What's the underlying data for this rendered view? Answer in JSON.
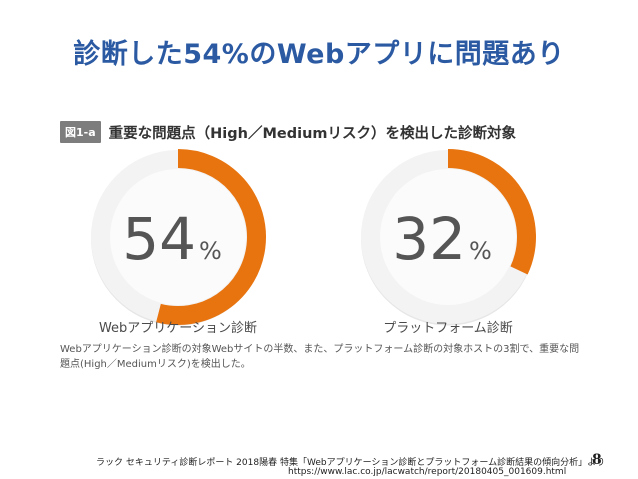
{
  "slide": {
    "title": "診断した54%のWebアプリに問題あり",
    "page_number": "8"
  },
  "figure": {
    "badge": "図1-a",
    "title": "重要な問題点（High／Mediumリスク）を検出した診断対象",
    "note": "Webアプリケーション診断の対象Webサイトの半数、また、プラットフォーム診断の対象ホストの3割で、重要な問題点(High／Mediumリスク)を検出した。"
  },
  "footer": {
    "source": "ラック セキュリティ診断レポート 2018陽春 特集「Webアプリケーション診断とプラットフォーム診断結果の傾向分析」より",
    "url": "https://www.lac.co.jp/lacwatch/report/20180405_001609.html"
  },
  "colors": {
    "accent": "#e8740f",
    "ring_base": "#f3f3f3",
    "title": "#2b5aa3"
  },
  "chart_data": [
    {
      "type": "pie",
      "label": "Webアプリケーション診断",
      "value": 54,
      "value_text": "54",
      "unit": "%"
    },
    {
      "type": "pie",
      "label": "プラットフォーム診断",
      "value": 32,
      "value_text": "32",
      "unit": "%"
    }
  ]
}
